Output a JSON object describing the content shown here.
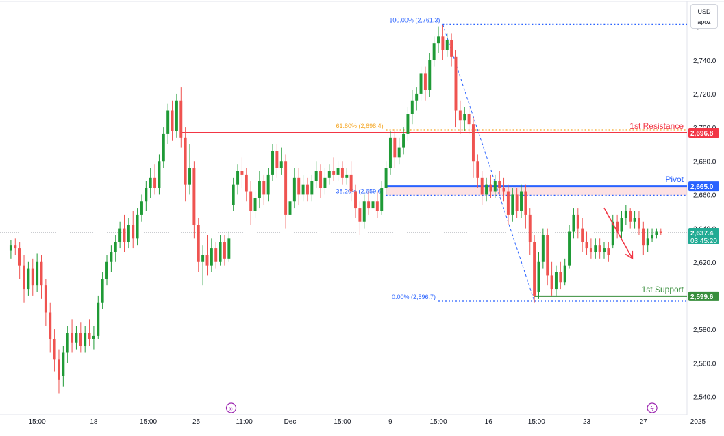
{
  "chart_data": {
    "type": "candlestick",
    "currency_badge": {
      "line1": "USD",
      "line2": "apoz"
    },
    "y_axis": {
      "range": [
        2530,
        2770
      ],
      "ticks": [
        2540,
        2560,
        2580,
        2600,
        2620,
        2640,
        2660,
        2680,
        2700,
        2720,
        2740,
        2760
      ],
      "tick_labels": [
        "2,540.0",
        "2,560.0",
        "2,580.0",
        "2,600.0",
        "2,620.0",
        "2,640.0",
        "2,660.0",
        "2,680.0",
        "2,700.0",
        "2,720.0",
        "2,740.0",
        "2,760.0"
      ]
    },
    "x_axis": {
      "range": [
        -5,
        310
      ],
      "ticks": [
        {
          "x": 12,
          "label": "15:00"
        },
        {
          "x": 38,
          "label": "18"
        },
        {
          "x": 63,
          "label": "15:00"
        },
        {
          "x": 85,
          "label": "25"
        },
        {
          "x": 107,
          "label": "11:00"
        },
        {
          "x": 128,
          "label": "Dec"
        },
        {
          "x": 152,
          "label": "15:00"
        },
        {
          "x": 174,
          "label": "9"
        },
        {
          "x": 196,
          "label": "15:00"
        },
        {
          "x": 219,
          "label": "16"
        },
        {
          "x": 241,
          "label": "15:00"
        },
        {
          "x": 264,
          "label": "23"
        },
        {
          "x": 290,
          "label": "27"
        },
        {
          "x": 315,
          "label": "2025"
        }
      ]
    },
    "candles": [
      {
        "x": 0,
        "o": 2627,
        "h": 2633,
        "c": 2630,
        "l": 2622
      },
      {
        "x": 2,
        "o": 2630,
        "h": 2634,
        "c": 2628,
        "l": 2624
      },
      {
        "x": 4,
        "o": 2628,
        "h": 2632,
        "c": 2618,
        "l": 2610
      },
      {
        "x": 6,
        "o": 2618,
        "h": 2624,
        "c": 2604,
        "l": 2596
      },
      {
        "x": 8,
        "o": 2604,
        "h": 2620,
        "c": 2616,
        "l": 2600
      },
      {
        "x": 10,
        "o": 2616,
        "h": 2622,
        "c": 2606,
        "l": 2600
      },
      {
        "x": 12,
        "o": 2606,
        "h": 2625,
        "c": 2620,
        "l": 2602
      },
      {
        "x": 14,
        "o": 2620,
        "h": 2624,
        "c": 2606,
        "l": 2598
      },
      {
        "x": 16,
        "o": 2606,
        "h": 2610,
        "c": 2590,
        "l": 2582
      },
      {
        "x": 18,
        "o": 2590,
        "h": 2596,
        "c": 2574,
        "l": 2566
      },
      {
        "x": 20,
        "o": 2574,
        "h": 2580,
        "c": 2562,
        "l": 2555
      },
      {
        "x": 22,
        "o": 2562,
        "h": 2568,
        "c": 2550,
        "l": 2542
      },
      {
        "x": 24,
        "o": 2552,
        "h": 2570,
        "c": 2566,
        "l": 2546
      },
      {
        "x": 26,
        "o": 2566,
        "h": 2582,
        "c": 2578,
        "l": 2560
      },
      {
        "x": 28,
        "o": 2578,
        "h": 2586,
        "c": 2572,
        "l": 2566
      },
      {
        "x": 30,
        "o": 2572,
        "h": 2582,
        "c": 2578,
        "l": 2568
      },
      {
        "x": 32,
        "o": 2578,
        "h": 2584,
        "c": 2570,
        "l": 2566
      },
      {
        "x": 34,
        "o": 2570,
        "h": 2582,
        "c": 2578,
        "l": 2566
      },
      {
        "x": 36,
        "o": 2578,
        "h": 2586,
        "c": 2574,
        "l": 2570
      },
      {
        "x": 38,
        "o": 2574,
        "h": 2582,
        "c": 2576,
        "l": 2568
      },
      {
        "x": 40,
        "o": 2576,
        "h": 2600,
        "c": 2596,
        "l": 2574
      },
      {
        "x": 42,
        "o": 2596,
        "h": 2614,
        "c": 2610,
        "l": 2592
      },
      {
        "x": 44,
        "o": 2610,
        "h": 2624,
        "c": 2620,
        "l": 2606
      },
      {
        "x": 46,
        "o": 2620,
        "h": 2630,
        "c": 2626,
        "l": 2614
      },
      {
        "x": 48,
        "o": 2626,
        "h": 2636,
        "c": 2632,
        "l": 2620
      },
      {
        "x": 50,
        "o": 2632,
        "h": 2644,
        "c": 2640,
        "l": 2628
      },
      {
        "x": 52,
        "o": 2640,
        "h": 2648,
        "c": 2632,
        "l": 2626
      },
      {
        "x": 54,
        "o": 2632,
        "h": 2646,
        "c": 2642,
        "l": 2628
      },
      {
        "x": 56,
        "o": 2642,
        "h": 2650,
        "c": 2634,
        "l": 2628
      },
      {
        "x": 58,
        "o": 2634,
        "h": 2652,
        "c": 2648,
        "l": 2630
      },
      {
        "x": 60,
        "o": 2648,
        "h": 2660,
        "c": 2656,
        "l": 2644
      },
      {
        "x": 62,
        "o": 2656,
        "h": 2668,
        "c": 2664,
        "l": 2650
      },
      {
        "x": 64,
        "o": 2664,
        "h": 2676,
        "c": 2670,
        "l": 2658
      },
      {
        "x": 66,
        "o": 2670,
        "h": 2678,
        "c": 2664,
        "l": 2660
      },
      {
        "x": 68,
        "o": 2664,
        "h": 2684,
        "c": 2680,
        "l": 2660
      },
      {
        "x": 70,
        "o": 2680,
        "h": 2700,
        "c": 2696,
        "l": 2676
      },
      {
        "x": 72,
        "o": 2696,
        "h": 2714,
        "c": 2710,
        "l": 2690
      },
      {
        "x": 74,
        "o": 2710,
        "h": 2716,
        "c": 2698,
        "l": 2692
      },
      {
        "x": 76,
        "o": 2698,
        "h": 2720,
        "c": 2716,
        "l": 2694
      },
      {
        "x": 78,
        "o": 2716,
        "h": 2724,
        "c": 2694,
        "l": 2688
      },
      {
        "x": 80,
        "o": 2694,
        "h": 2700,
        "c": 2666,
        "l": 2656
      },
      {
        "x": 82,
        "o": 2666,
        "h": 2690,
        "c": 2676,
        "l": 2660
      },
      {
        "x": 84,
        "o": 2676,
        "h": 2680,
        "c": 2642,
        "l": 2634
      },
      {
        "x": 86,
        "o": 2642,
        "h": 2646,
        "c": 2620,
        "l": 2614
      },
      {
        "x": 88,
        "o": 2620,
        "h": 2630,
        "c": 2624,
        "l": 2606
      },
      {
        "x": 90,
        "o": 2624,
        "h": 2636,
        "c": 2618,
        "l": 2612
      },
      {
        "x": 92,
        "o": 2618,
        "h": 2634,
        "c": 2628,
        "l": 2614
      },
      {
        "x": 94,
        "o": 2628,
        "h": 2632,
        "c": 2620,
        "l": 2616
      },
      {
        "x": 96,
        "o": 2620,
        "h": 2636,
        "c": 2632,
        "l": 2618
      },
      {
        "x": 98,
        "o": 2632,
        "h": 2636,
        "c": 2622,
        "l": 2618
      },
      {
        "x": 100,
        "o": 2622,
        "h": 2638,
        "c": 2634,
        "l": 2620
      },
      {
        "x": 102,
        "o": 2654,
        "h": 2670,
        "c": 2666,
        "l": 2650
      },
      {
        "x": 104,
        "o": 2666,
        "h": 2678,
        "c": 2674,
        "l": 2660
      },
      {
        "x": 106,
        "o": 2674,
        "h": 2682,
        "c": 2672,
        "l": 2664
      },
      {
        "x": 108,
        "o": 2672,
        "h": 2676,
        "c": 2662,
        "l": 2656
      },
      {
        "x": 110,
        "o": 2662,
        "h": 2668,
        "c": 2650,
        "l": 2642
      },
      {
        "x": 112,
        "o": 2650,
        "h": 2662,
        "c": 2658,
        "l": 2646
      },
      {
        "x": 114,
        "o": 2658,
        "h": 2674,
        "c": 2668,
        "l": 2652
      },
      {
        "x": 116,
        "o": 2668,
        "h": 2672,
        "c": 2660,
        "l": 2654
      },
      {
        "x": 118,
        "o": 2660,
        "h": 2676,
        "c": 2672,
        "l": 2656
      },
      {
        "x": 120,
        "o": 2672,
        "h": 2690,
        "c": 2686,
        "l": 2668
      },
      {
        "x": 122,
        "o": 2686,
        "h": 2690,
        "c": 2676,
        "l": 2670
      },
      {
        "x": 124,
        "o": 2676,
        "h": 2688,
        "c": 2680,
        "l": 2672
      },
      {
        "x": 126,
        "o": 2680,
        "h": 2684,
        "c": 2648,
        "l": 2640
      },
      {
        "x": 128,
        "o": 2648,
        "h": 2662,
        "c": 2656,
        "l": 2644
      },
      {
        "x": 130,
        "o": 2656,
        "h": 2676,
        "c": 2670,
        "l": 2652
      },
      {
        "x": 132,
        "o": 2670,
        "h": 2676,
        "c": 2660,
        "l": 2654
      },
      {
        "x": 134,
        "o": 2660,
        "h": 2672,
        "c": 2666,
        "l": 2656
      },
      {
        "x": 136,
        "o": 2666,
        "h": 2670,
        "c": 2660,
        "l": 2656
      },
      {
        "x": 138,
        "o": 2660,
        "h": 2672,
        "c": 2668,
        "l": 2656
      },
      {
        "x": 140,
        "o": 2668,
        "h": 2680,
        "c": 2674,
        "l": 2664
      },
      {
        "x": 142,
        "o": 2674,
        "h": 2678,
        "c": 2664,
        "l": 2658
      },
      {
        "x": 144,
        "o": 2664,
        "h": 2676,
        "c": 2670,
        "l": 2660
      },
      {
        "x": 146,
        "o": 2670,
        "h": 2678,
        "c": 2674,
        "l": 2666
      },
      {
        "x": 148,
        "o": 2674,
        "h": 2682,
        "c": 2672,
        "l": 2668
      },
      {
        "x": 150,
        "o": 2672,
        "h": 2680,
        "c": 2676,
        "l": 2668
      },
      {
        "x": 152,
        "o": 2676,
        "h": 2680,
        "c": 2670,
        "l": 2666
      },
      {
        "x": 154,
        "o": 2670,
        "h": 2676,
        "c": 2672,
        "l": 2666
      },
      {
        "x": 156,
        "o": 2672,
        "h": 2680,
        "c": 2662,
        "l": 2656
      },
      {
        "x": 158,
        "o": 2662,
        "h": 2666,
        "c": 2652,
        "l": 2646
      },
      {
        "x": 160,
        "o": 2652,
        "h": 2656,
        "c": 2644,
        "l": 2636
      },
      {
        "x": 162,
        "o": 2644,
        "h": 2660,
        "c": 2656,
        "l": 2640
      },
      {
        "x": 164,
        "o": 2656,
        "h": 2662,
        "c": 2652,
        "l": 2648
      },
      {
        "x": 166,
        "o": 2652,
        "h": 2660,
        "c": 2656,
        "l": 2646
      },
      {
        "x": 168,
        "o": 2656,
        "h": 2662,
        "c": 2650,
        "l": 2646
      },
      {
        "x": 170,
        "o": 2650,
        "h": 2668,
        "c": 2664,
        "l": 2648
      },
      {
        "x": 172,
        "o": 2664,
        "h": 2680,
        "c": 2676,
        "l": 2660
      },
      {
        "x": 174,
        "o": 2676,
        "h": 2698,
        "c": 2694,
        "l": 2672
      },
      {
        "x": 176,
        "o": 2694,
        "h": 2698,
        "c": 2682,
        "l": 2676
      },
      {
        "x": 178,
        "o": 2682,
        "h": 2694,
        "c": 2688,
        "l": 2678
      },
      {
        "x": 180,
        "o": 2688,
        "h": 2700,
        "c": 2696,
        "l": 2684
      },
      {
        "x": 182,
        "o": 2696,
        "h": 2712,
        "c": 2708,
        "l": 2692
      },
      {
        "x": 184,
        "o": 2708,
        "h": 2722,
        "c": 2716,
        "l": 2702
      },
      {
        "x": 186,
        "o": 2716,
        "h": 2724,
        "c": 2720,
        "l": 2710
      },
      {
        "x": 188,
        "o": 2720,
        "h": 2736,
        "c": 2732,
        "l": 2716
      },
      {
        "x": 190,
        "o": 2732,
        "h": 2736,
        "c": 2722,
        "l": 2716
      },
      {
        "x": 192,
        "o": 2722,
        "h": 2744,
        "c": 2740,
        "l": 2718
      },
      {
        "x": 194,
        "o": 2740,
        "h": 2754,
        "c": 2750,
        "l": 2736
      },
      {
        "x": 196,
        "o": 2750,
        "h": 2760,
        "c": 2754,
        "l": 2744
      },
      {
        "x": 198,
        "o": 2754,
        "h": 2761,
        "c": 2746,
        "l": 2740
      },
      {
        "x": 200,
        "o": 2746,
        "h": 2756,
        "c": 2752,
        "l": 2742
      },
      {
        "x": 202,
        "o": 2752,
        "h": 2756,
        "c": 2742,
        "l": 2736
      },
      {
        "x": 204,
        "o": 2742,
        "h": 2746,
        "c": 2710,
        "l": 2700
      },
      {
        "x": 206,
        "o": 2710,
        "h": 2716,
        "c": 2704,
        "l": 2696
      },
      {
        "x": 208,
        "o": 2704,
        "h": 2712,
        "c": 2708,
        "l": 2698
      },
      {
        "x": 210,
        "o": 2708,
        "h": 2712,
        "c": 2702,
        "l": 2696
      },
      {
        "x": 212,
        "o": 2702,
        "h": 2706,
        "c": 2680,
        "l": 2670
      },
      {
        "x": 214,
        "o": 2680,
        "h": 2684,
        "c": 2670,
        "l": 2664
      },
      {
        "x": 216,
        "o": 2670,
        "h": 2674,
        "c": 2660,
        "l": 2654
      },
      {
        "x": 218,
        "o": 2660,
        "h": 2670,
        "c": 2666,
        "l": 2656
      },
      {
        "x": 220,
        "o": 2666,
        "h": 2672,
        "c": 2662,
        "l": 2658
      },
      {
        "x": 222,
        "o": 2662,
        "h": 2672,
        "c": 2668,
        "l": 2658
      },
      {
        "x": 224,
        "o": 2668,
        "h": 2674,
        "c": 2664,
        "l": 2660
      },
      {
        "x": 226,
        "o": 2664,
        "h": 2670,
        "c": 2662,
        "l": 2656
      },
      {
        "x": 228,
        "o": 2662,
        "h": 2666,
        "c": 2648,
        "l": 2642
      },
      {
        "x": 230,
        "o": 2648,
        "h": 2664,
        "c": 2660,
        "l": 2644
      },
      {
        "x": 232,
        "o": 2660,
        "h": 2664,
        "c": 2650,
        "l": 2646
      },
      {
        "x": 234,
        "o": 2650,
        "h": 2666,
        "c": 2662,
        "l": 2646
      },
      {
        "x": 236,
        "o": 2662,
        "h": 2666,
        "c": 2648,
        "l": 2640
      },
      {
        "x": 238,
        "o": 2648,
        "h": 2652,
        "c": 2632,
        "l": 2624
      },
      {
        "x": 240,
        "o": 2632,
        "h": 2636,
        "c": 2600,
        "l": 2596
      },
      {
        "x": 242,
        "o": 2602,
        "h": 2626,
        "c": 2620,
        "l": 2598
      },
      {
        "x": 244,
        "o": 2620,
        "h": 2640,
        "c": 2636,
        "l": 2616
      },
      {
        "x": 246,
        "o": 2636,
        "h": 2640,
        "c": 2612,
        "l": 2606
      },
      {
        "x": 248,
        "o": 2612,
        "h": 2620,
        "c": 2604,
        "l": 2600
      },
      {
        "x": 250,
        "o": 2604,
        "h": 2618,
        "c": 2614,
        "l": 2600
      },
      {
        "x": 252,
        "o": 2614,
        "h": 2620,
        "c": 2608,
        "l": 2604
      },
      {
        "x": 254,
        "o": 2608,
        "h": 2622,
        "c": 2618,
        "l": 2606
      },
      {
        "x": 256,
        "o": 2618,
        "h": 2642,
        "c": 2638,
        "l": 2616
      },
      {
        "x": 258,
        "o": 2638,
        "h": 2652,
        "c": 2648,
        "l": 2634
      },
      {
        "x": 260,
        "o": 2648,
        "h": 2652,
        "c": 2640,
        "l": 2634
      },
      {
        "x": 262,
        "o": 2640,
        "h": 2646,
        "c": 2632,
        "l": 2626
      },
      {
        "x": 264,
        "o": 2632,
        "h": 2638,
        "c": 2628,
        "l": 2624
      },
      {
        "x": 266,
        "o": 2628,
        "h": 2634,
        "c": 2626,
        "l": 2622
      },
      {
        "x": 268,
        "o": 2626,
        "h": 2634,
        "c": 2630,
        "l": 2622
      },
      {
        "x": 270,
        "o": 2630,
        "h": 2634,
        "c": 2626,
        "l": 2622
      },
      {
        "x": 272,
        "o": 2626,
        "h": 2632,
        "c": 2628,
        "l": 2622
      },
      {
        "x": 274,
        "o": 2628,
        "h": 2632,
        "c": 2624,
        "l": 2620
      },
      {
        "x": 276,
        "o": 2630,
        "h": 2648,
        "c": 2644,
        "l": 2628
      },
      {
        "x": 278,
        "o": 2644,
        "h": 2648,
        "c": 2638,
        "l": 2634
      },
      {
        "x": 280,
        "o": 2638,
        "h": 2650,
        "c": 2646,
        "l": 2634
      },
      {
        "x": 282,
        "o": 2646,
        "h": 2654,
        "c": 2650,
        "l": 2642
      },
      {
        "x": 284,
        "o": 2650,
        "h": 2652,
        "c": 2644,
        "l": 2640
      },
      {
        "x": 286,
        "o": 2644,
        "h": 2650,
        "c": 2646,
        "l": 2640
      },
      {
        "x": 288,
        "o": 2646,
        "h": 2650,
        "c": 2640,
        "l": 2636
      },
      {
        "x": 290,
        "o": 2640,
        "h": 2644,
        "c": 2630,
        "l": 2624
      },
      {
        "x": 292,
        "o": 2630,
        "h": 2640,
        "c": 2634,
        "l": 2626
      },
      {
        "x": 294,
        "o": 2634,
        "h": 2640,
        "c": 2636,
        "l": 2632
      },
      {
        "x": 296,
        "o": 2636,
        "h": 2640,
        "c": 2638,
        "l": 2634
      },
      {
        "x": 298,
        "o": 2638,
        "h": 2640,
        "c": 2637.4,
        "l": 2636
      }
    ],
    "levels": {
      "resistance": {
        "value": 2696.8,
        "label": "1st Resistance",
        "price_tag": "2,696.8",
        "color": "#f23645"
      },
      "pivot": {
        "value": 2665.0,
        "label": "Pivot",
        "price_tag": "2,665.0",
        "color": "#2962ff"
      },
      "support": {
        "value": 2599.6,
        "label": "1st Support",
        "price_tag": "2,599.6",
        "color": "#388e3c"
      }
    },
    "pivot_zone": {
      "from": 2659.6,
      "to": 2665.0
    },
    "fibonacci": [
      {
        "value": 2761.3,
        "label": "100.00% (2,761.3)",
        "color": "#2962ff"
      },
      {
        "value": 2698.4,
        "label": "61.80% (2,698.4)",
        "color": "#f5a623"
      },
      {
        "value": 2659.6,
        "label": "38.20% (2,659.6)",
        "color": "#2962ff"
      },
      {
        "value": 2596.7,
        "label": "0.00% (2,596.7)",
        "color": "#2962ff"
      }
    ],
    "fib_trend": {
      "from": {
        "x": 198,
        "y": 2761.3
      },
      "to": {
        "x": 240,
        "y": 2596.7
      }
    },
    "current_price": {
      "value": 2637.4,
      "label": "2,637.4",
      "countdown": "03:45:20",
      "color": "#22ab94"
    },
    "forecast_arrow": {
      "from": {
        "x": 272,
        "y": 2652
      },
      "to": {
        "x": 285,
        "y": 2622
      },
      "color": "#f23645",
      "direction": "down"
    },
    "colors": {
      "up": "#22ab94",
      "down": "#f23645",
      "up_fill": "#1f9a36",
      "down_fill": "#ef5350"
    }
  }
}
